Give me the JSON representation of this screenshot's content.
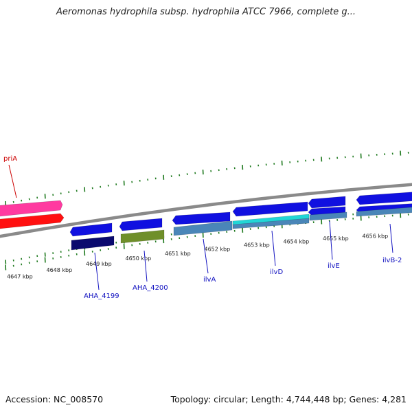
{
  "title": "Aeromonas hydrophila subsp. hydrophila ATCC 7966, complete g...",
  "accession": "Accession: NC_008570",
  "topology": "Topology: circular; Length: 4,744,448 bp; Genes: 4,281",
  "colors": {
    "backbone": "#8a8a8a",
    "tick": "#1f7a1f",
    "gene_blue": "#1010e0",
    "gene_pink": "#ff3aa0",
    "gene_red": "#ff1010",
    "gene_navy": "#0a0a6e",
    "gene_olive": "#6f8f2a",
    "gene_steel": "#4a86b8",
    "gene_cyan": "#22d6d6",
    "label_blue": "#1010c0",
    "label_red": "#cc0000"
  },
  "scale_labels": [
    "4647 kbp",
    "4648 kbp",
    "4649 kbp",
    "4650 kbp",
    "4651 kbp",
    "4652 kbp",
    "4653 kbp",
    "4654 kbp",
    "4655 kbp",
    "4656 kbp"
  ],
  "gene_labels": {
    "priA": "priA",
    "AHA_4199": "AHA_4199",
    "AHA_4200": "AHA_4200",
    "ilvA": "ilvA",
    "ilvD": "ilvD",
    "ilvE": "ilvE",
    "ilvB2": "ilvB-2"
  }
}
